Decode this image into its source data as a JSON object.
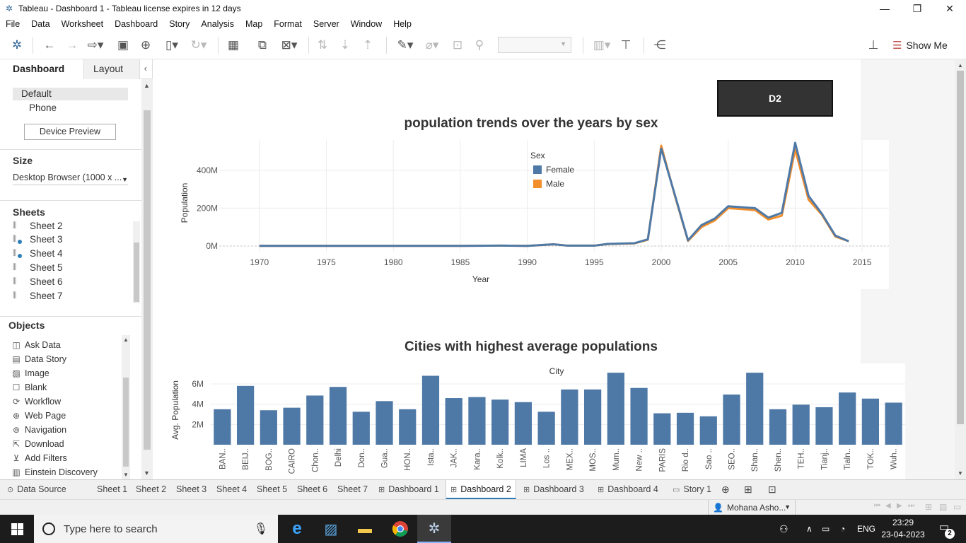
{
  "window": {
    "title": "Tableau - Dashboard 1 - Tableau license expires in 12 days",
    "minimize": "—",
    "restore": "❐",
    "close": "✕"
  },
  "menu": [
    "File",
    "Data",
    "Worksheet",
    "Dashboard",
    "Story",
    "Analysis",
    "Map",
    "Format",
    "Server",
    "Window",
    "Help"
  ],
  "toolbar": {
    "show_me_label": "Show Me",
    "icons": [
      "tableau-logo-icon",
      "undo-icon",
      "redo-icon",
      "replay-icon",
      "save-icon",
      "new-datasource-icon",
      "pause-updates-icon",
      "refresh-icon",
      "new-worksheet-icon",
      "duplicate-sheet-icon",
      "clear-sheet-icon",
      "swap-icon",
      "sort-asc-icon",
      "sort-desc-icon",
      "highlight-icon",
      "attach-icon",
      "label-icon",
      "pin-icon",
      "show-cards-icon",
      "presentation-icon",
      "share-icon",
      "format-painter-icon"
    ]
  },
  "left_panel": {
    "tabs": {
      "dashboard": "Dashboard",
      "layout": "Layout"
    },
    "devices": {
      "default": "Default",
      "phone": "Phone",
      "preview_button": "Device Preview"
    },
    "size": {
      "heading": "Size",
      "value": "Desktop Browser (1000 x ..."
    },
    "sheets": {
      "heading": "Sheets",
      "items": [
        {
          "label": "Sheet 2",
          "used": false
        },
        {
          "label": "Sheet 3",
          "used": true
        },
        {
          "label": "Sheet 4",
          "used": true
        },
        {
          "label": "Sheet 5",
          "used": false
        },
        {
          "label": "Sheet 6",
          "used": false
        },
        {
          "label": "Sheet 7",
          "used": false
        }
      ]
    },
    "objects": {
      "heading": "Objects",
      "items": [
        {
          "label": "Ask Data",
          "icon": "ask-data-icon",
          "glyph": "◫"
        },
        {
          "label": "Data Story",
          "icon": "data-story-icon",
          "glyph": "▤"
        },
        {
          "label": "Image",
          "icon": "image-icon",
          "glyph": "▨"
        },
        {
          "label": "Blank",
          "icon": "blank-icon",
          "glyph": "☐"
        },
        {
          "label": "Workflow",
          "icon": "workflow-icon",
          "glyph": "⟳"
        },
        {
          "label": "Web Page",
          "icon": "globe-icon",
          "glyph": "⊕"
        },
        {
          "label": "Navigation",
          "icon": "navigation-icon",
          "glyph": "⊚"
        },
        {
          "label": "Download",
          "icon": "download-icon",
          "glyph": "⇱"
        },
        {
          "label": "Add Filters",
          "icon": "filter-icon",
          "glyph": "⊻"
        },
        {
          "label": "Einstein Discovery",
          "icon": "einstein-icon",
          "glyph": "▥"
        }
      ]
    }
  },
  "dashboard": {
    "button_label": "D2",
    "chart1_title": "population trends over the years by sex",
    "chart2_title": "Cities with highest average populations"
  },
  "chart_data": [
    {
      "type": "line",
      "title": "population trends over the years by sex",
      "xlabel": "Year",
      "ylabel": "Population",
      "xlim": [
        1967,
        2017
      ],
      "ylim": [
        -30000000,
        560000000
      ],
      "x_ticks": [
        1970,
        1975,
        1980,
        1985,
        1990,
        1995,
        2000,
        2005,
        2010,
        2015
      ],
      "y_ticks": [
        {
          "v": 0,
          "label": "0M"
        },
        {
          "v": 200000000,
          "label": "200M"
        },
        {
          "v": 400000000,
          "label": "400M"
        }
      ],
      "grid": true,
      "legend": {
        "title": "Sex",
        "placement": "top-center"
      },
      "series": [
        {
          "name": "Male",
          "color": "#f28e2b",
          "x": [
            1970,
            1975,
            1980,
            1985,
            1988,
            1990,
            1992,
            1993,
            1995,
            1996,
            1998,
            1999,
            2000,
            2001,
            2002,
            2003,
            2004,
            2005,
            2007,
            2008,
            2009,
            2010,
            2011,
            2012,
            2013,
            2014
          ],
          "y": [
            1000000,
            1000000,
            1000000,
            1000000,
            2000000,
            1000000,
            9000000,
            2000000,
            2000000,
            10000000,
            14000000,
            33000000,
            530000000,
            270000000,
            27000000,
            100000000,
            135000000,
            200000000,
            190000000,
            140000000,
            160000000,
            510000000,
            245000000,
            165000000,
            50000000,
            25000000
          ]
        },
        {
          "name": "Female",
          "color": "#4e79a7",
          "x": [
            1970,
            1975,
            1980,
            1985,
            1988,
            1990,
            1992,
            1993,
            1995,
            1996,
            1998,
            1999,
            2000,
            2001,
            2002,
            2003,
            2004,
            2005,
            2007,
            2008,
            2009,
            2010,
            2011,
            2012,
            2013,
            2014
          ],
          "y": [
            1000000,
            1000000,
            1000000,
            1000000,
            2000000,
            1000000,
            9000000,
            2000000,
            2000000,
            11000000,
            15000000,
            35000000,
            515000000,
            275000000,
            30000000,
            110000000,
            145000000,
            210000000,
            200000000,
            150000000,
            175000000,
            545000000,
            265000000,
            170000000,
            55000000,
            25000000
          ]
        }
      ]
    },
    {
      "type": "bar",
      "title": "Cities with highest average populations",
      "xlabel": "City",
      "ylabel": "Avg. Population",
      "ylim": [
        0,
        7600000
      ],
      "y_ticks": [
        {
          "v": 2000000,
          "label": "2M"
        },
        {
          "v": 4000000,
          "label": "4M"
        },
        {
          "v": 6000000,
          "label": "6M"
        }
      ],
      "color": "#4e79a7",
      "categories": [
        "BAN..",
        "BEIJ..",
        "BOG..",
        "CAIRO",
        "Chon..",
        "Delhi",
        "Don..",
        "Gua..",
        "HON..",
        "Ista..",
        "JAK..",
        "Kara..",
        "Kolk..",
        "LIMA",
        "Los ..",
        "MEX..",
        "MOS..",
        "Mum..",
        "New ..",
        "PARIS",
        "Rio d..",
        "Sao ..",
        "SEO..",
        "Shan..",
        "Shen..",
        "TEH..",
        "Tianj..",
        "Tialn..",
        "TOK..",
        "Wuh.."
      ],
      "values": [
        3500000,
        5800000,
        3400000,
        3650000,
        4850000,
        5700000,
        3250000,
        4300000,
        3500000,
        6800000,
        4600000,
        4700000,
        4450000,
        4200000,
        3250000,
        5450000,
        5450000,
        7100000,
        5600000,
        3100000,
        3150000,
        2800000,
        4950000,
        7100000,
        3500000,
        3950000,
        3700000,
        5150000,
        4550000,
        4150000
      ]
    }
  ],
  "sheet_tabs": [
    {
      "label": "Data Source",
      "icon": "datasource-icon",
      "glyph": "⊙",
      "active": false
    },
    {
      "label": "Sheet 1",
      "icon": "",
      "glyph": "",
      "active": false
    },
    {
      "label": "Sheet 2",
      "icon": "",
      "glyph": "",
      "active": false
    },
    {
      "label": "Sheet 3",
      "icon": "",
      "glyph": "",
      "active": false
    },
    {
      "label": "Sheet 4",
      "icon": "",
      "glyph": "",
      "active": false
    },
    {
      "label": "Sheet 5",
      "icon": "",
      "glyph": "",
      "active": false
    },
    {
      "label": "Sheet 6",
      "icon": "",
      "glyph": "",
      "active": false
    },
    {
      "label": "Sheet 7",
      "icon": "",
      "glyph": "",
      "active": false
    },
    {
      "label": "Dashboard 1",
      "icon": "dashboard-icon",
      "glyph": "⊞",
      "active": false
    },
    {
      "label": "Dashboard 2",
      "icon": "dashboard-icon",
      "glyph": "⊞",
      "active": true
    },
    {
      "label": "Dashboard 3",
      "icon": "dashboard-icon",
      "glyph": "⊞",
      "active": false
    },
    {
      "label": "Dashboard 4",
      "icon": "dashboard-icon",
      "glyph": "⊞",
      "active": false
    },
    {
      "label": "Story 1",
      "icon": "story-icon",
      "glyph": "▭",
      "active": false
    }
  ],
  "status": {
    "user": "Mohana Asho..."
  },
  "taskbar": {
    "search_placeholder": "Type here to search",
    "language": "ENG",
    "time": "23:29",
    "date": "23-04-2023",
    "notifications": "2"
  }
}
